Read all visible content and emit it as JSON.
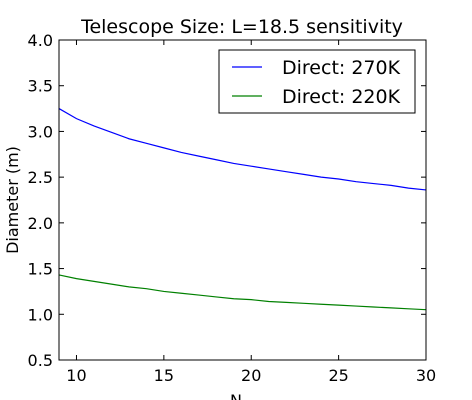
{
  "chart_data": {
    "type": "line",
    "title": "Telescope Size: L=18.5 sensitivity",
    "xlabel": "N",
    "ylabel": "Diameter (m)",
    "xlim": [
      9,
      30
    ],
    "ylim": [
      0.5,
      4.0
    ],
    "xticks": [
      10,
      15,
      20,
      25,
      30
    ],
    "yticks": [
      0.5,
      1.0,
      1.5,
      2.0,
      2.5,
      3.0,
      3.5,
      4.0
    ],
    "xtick_labels": [
      "10",
      "15",
      "20",
      "25",
      "30"
    ],
    "ytick_labels": [
      "0.5",
      "1.0",
      "1.5",
      "2.0",
      "2.5",
      "3.0",
      "3.5",
      "4.0"
    ],
    "grid": false,
    "legend_position": "top-right",
    "series": [
      {
        "name": "Direct: 270K",
        "color": "#0000ff",
        "x": [
          9,
          10,
          11,
          12,
          13,
          14,
          15,
          16,
          17,
          18,
          19,
          20,
          21,
          22,
          23,
          24,
          25,
          26,
          27,
          28,
          29,
          30
        ],
        "y": [
          3.25,
          3.14,
          3.06,
          2.99,
          2.92,
          2.87,
          2.82,
          2.77,
          2.73,
          2.69,
          2.65,
          2.62,
          2.59,
          2.56,
          2.53,
          2.5,
          2.48,
          2.45,
          2.43,
          2.41,
          2.38,
          2.36
        ]
      },
      {
        "name": "Direct: 220K",
        "color": "#008000",
        "x": [
          9,
          10,
          11,
          12,
          13,
          14,
          15,
          16,
          17,
          18,
          19,
          20,
          21,
          22,
          23,
          24,
          25,
          26,
          27,
          28,
          29,
          30
        ],
        "y": [
          1.43,
          1.39,
          1.36,
          1.33,
          1.3,
          1.28,
          1.25,
          1.23,
          1.21,
          1.19,
          1.17,
          1.16,
          1.14,
          1.13,
          1.12,
          1.11,
          1.1,
          1.09,
          1.08,
          1.07,
          1.06,
          1.05
        ]
      }
    ]
  }
}
